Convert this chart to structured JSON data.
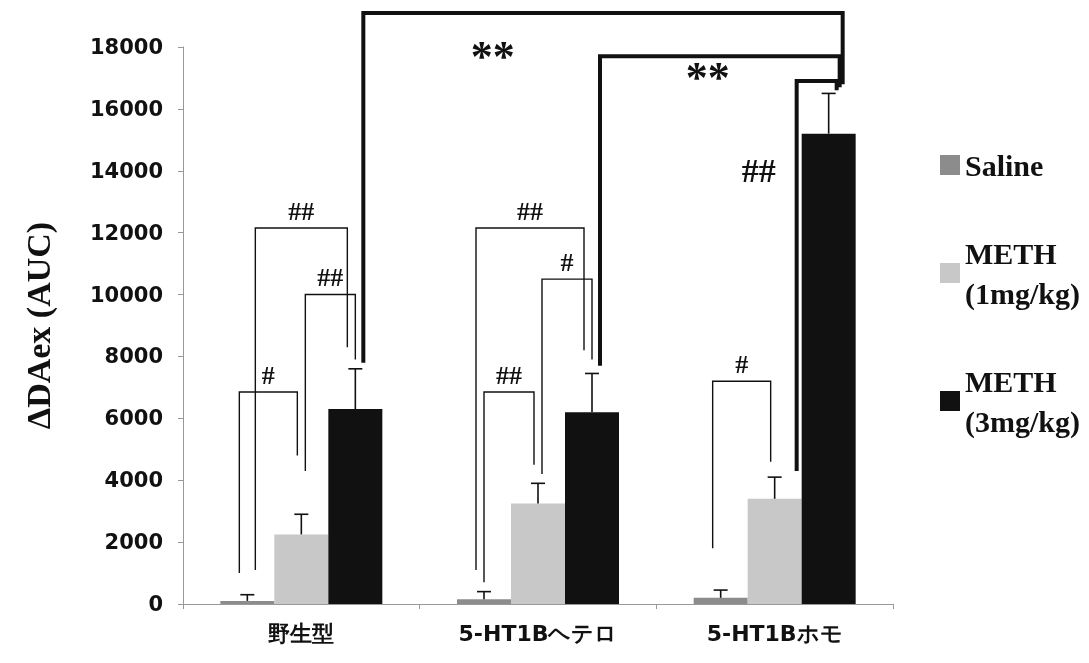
{
  "chart_data": {
    "type": "bar",
    "ylabel": "ΔDAex (AUC)",
    "categories": [
      "野生型",
      "5-HT1Bヘテロ",
      "5-HT1Bホモ"
    ],
    "series": [
      {
        "name": "Saline",
        "color": "#8c8c8c",
        "values": [
          100,
          150,
          200
        ],
        "errors": [
          [
            100,
            300
          ],
          [
            150,
            400
          ],
          [
            200,
            450
          ]
        ]
      },
      {
        "name": "METH (1mg/kg)",
        "color": "#c8c8c8",
        "values": [
          2250,
          3250,
          3400
        ],
        "errors": [
          [
            2250,
            2900
          ],
          [
            3250,
            3900
          ],
          [
            3400,
            4100
          ]
        ]
      },
      {
        "name": "METH (3mg/kg)",
        "color": "#111111",
        "values": [
          6300,
          6200,
          15200
        ],
        "errors": [
          [
            6300,
            7600
          ],
          [
            6200,
            7450
          ],
          [
            15200,
            16500
          ]
        ]
      }
    ],
    "ylim": [
      0,
      18000
    ],
    "yticks": [
      0,
      2000,
      4000,
      6000,
      8000,
      10000,
      12000,
      14000,
      16000,
      18000
    ],
    "grid": false,
    "legend": "right",
    "annotations": [
      "##",
      "##",
      "#",
      "##",
      "#",
      "##",
      "#",
      "##",
      "**",
      "**"
    ]
  }
}
